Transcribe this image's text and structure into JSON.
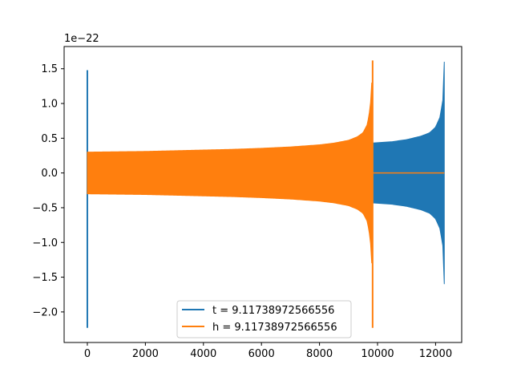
{
  "chart_data": {
    "type": "line",
    "title": "",
    "xlabel": "",
    "ylabel": "",
    "y_offset_label": "1e−22",
    "xlim": [
      -800,
      12900
    ],
    "ylim": [
      -2.44,
      1.82
    ],
    "x_ticks": [
      0,
      2000,
      4000,
      6000,
      8000,
      10000,
      12000
    ],
    "x_tick_labels": [
      "0",
      "2000",
      "4000",
      "6000",
      "8000",
      "10000",
      "12000"
    ],
    "y_ticks": [
      1.5,
      1.0,
      0.5,
      0.0,
      -0.5,
      -1.0,
      -1.5,
      -2.0
    ],
    "y_tick_labels": [
      "1.5",
      "1.0",
      "0.5",
      "0.0",
      "−0.5",
      "−1.0",
      "−1.5",
      "−2.0"
    ],
    "grid": false,
    "legend": "lower-center",
    "series": [
      {
        "name": "t = 9.11738972566556",
        "color": "#1f77b4",
        "spike": {
          "x": 0,
          "max": 1.48,
          "min": -2.23
        },
        "envelope_x": [
          30,
          2000,
          4000,
          6000,
          8000,
          9000,
          9800,
          10500,
          11000,
          11500,
          11800,
          12000,
          12150,
          12250,
          12300
        ],
        "envelope_amp": [
          0.0,
          0.3,
          0.31,
          0.32,
          0.33,
          0.35,
          0.43,
          0.45,
          0.48,
          0.53,
          0.58,
          0.66,
          0.8,
          1.05,
          1.6
        ],
        "envelope_min_override": {
          "12300": -1.6
        },
        "flat_x": [
          0,
          30
        ],
        "flat_value": 0.0
      },
      {
        "name": "h = 9.11738972566556",
        "color": "#ff7f0e",
        "spike": {
          "x": 9830,
          "max": 1.62,
          "min": -2.23
        },
        "envelope_x": [
          0,
          1000,
          2000,
          3000,
          4000,
          5000,
          6000,
          7000,
          8000,
          8500,
          9000,
          9300,
          9500,
          9650,
          9750,
          9800
        ],
        "envelope_amp": [
          0.3,
          0.305,
          0.31,
          0.32,
          0.33,
          0.34,
          0.355,
          0.375,
          0.405,
          0.43,
          0.47,
          0.52,
          0.58,
          0.7,
          0.95,
          1.3
        ],
        "flat_x": [
          9830,
          12300
        ],
        "flat_value": 0.0
      }
    ]
  }
}
